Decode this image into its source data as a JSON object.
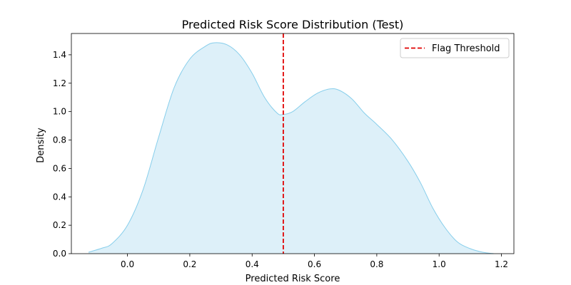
{
  "chart_data": {
    "type": "area",
    "title": "Predicted Risk Score Distribution (Test)",
    "xlabel": "Predicted Risk Score",
    "ylabel": "Density",
    "xlim": [
      -0.18,
      1.24
    ],
    "ylim": [
      0,
      1.55
    ],
    "xticks": [
      "0.0",
      "0.2",
      "0.4",
      "0.6",
      "0.8",
      "1.0",
      "1.2"
    ],
    "yticks": [
      "0.0",
      "0.2",
      "0.4",
      "0.6",
      "0.8",
      "1.0",
      "1.2",
      "1.4"
    ],
    "grid": false,
    "legend_position": "top-right",
    "series": [
      {
        "kind": "kde",
        "fill_color": "#ddf0f9",
        "line_color": "#87ceeb",
        "points": [
          [
            -0.125,
            0.01
          ],
          [
            -0.08,
            0.04
          ],
          [
            -0.05,
            0.07
          ],
          [
            0.0,
            0.2
          ],
          [
            0.05,
            0.45
          ],
          [
            0.1,
            0.82
          ],
          [
            0.15,
            1.17
          ],
          [
            0.2,
            1.37
          ],
          [
            0.25,
            1.46
          ],
          [
            0.28,
            1.485
          ],
          [
            0.32,
            1.47
          ],
          [
            0.36,
            1.4
          ],
          [
            0.4,
            1.27
          ],
          [
            0.44,
            1.1
          ],
          [
            0.48,
            0.99
          ],
          [
            0.5,
            0.98
          ],
          [
            0.53,
            1.0
          ],
          [
            0.57,
            1.07
          ],
          [
            0.61,
            1.13
          ],
          [
            0.65,
            1.16
          ],
          [
            0.68,
            1.15
          ],
          [
            0.72,
            1.09
          ],
          [
            0.76,
            0.99
          ],
          [
            0.8,
            0.91
          ],
          [
            0.85,
            0.8
          ],
          [
            0.9,
            0.65
          ],
          [
            0.94,
            0.5
          ],
          [
            0.98,
            0.32
          ],
          [
            1.02,
            0.18
          ],
          [
            1.06,
            0.08
          ],
          [
            1.1,
            0.035
          ],
          [
            1.14,
            0.01
          ],
          [
            1.175,
            0.0
          ]
        ]
      }
    ],
    "threshold": {
      "name": "Flag Threshold",
      "x": 0.5,
      "color": "#e00000",
      "style": "dashed"
    }
  }
}
